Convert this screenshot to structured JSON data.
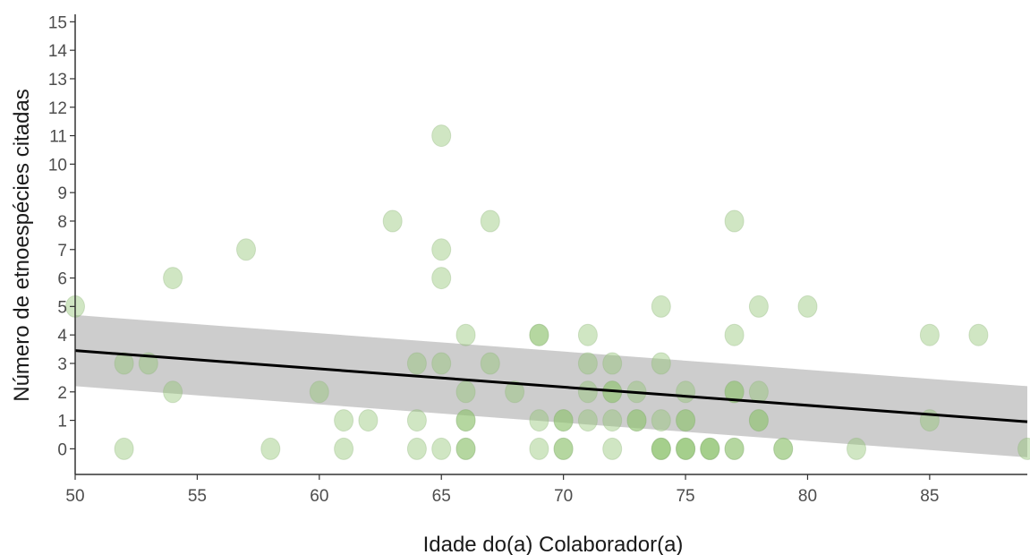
{
  "chart_data": {
    "type": "scatter",
    "title": "",
    "xlabel": "Idade do(a) Colaborador(a)",
    "ylabel": "Número de etnoespécies citadas",
    "xlim": [
      50,
      89
    ],
    "ylim": [
      -0.9,
      15.2
    ],
    "x_ticks": [
      50,
      55,
      60,
      65,
      70,
      75,
      80,
      85
    ],
    "y_ticks": [
      0,
      1,
      2,
      3,
      4,
      5,
      6,
      7,
      8,
      9,
      10,
      11,
      12,
      13,
      14,
      15
    ],
    "grid": false,
    "legend": "none",
    "colors": {
      "point_fill": "#8fc46f",
      "point_stroke": "#8fb47b",
      "fit_line": "#000000",
      "confidence_band": "#c8c8c8",
      "axis": "#333333",
      "tick_text": "#4d4d4d"
    },
    "series": [
      {
        "kind": "points",
        "x": [
          50,
          52,
          52,
          53,
          54,
          54,
          57,
          58,
          60,
          61,
          61,
          62,
          63,
          64,
          64,
          64,
          65,
          65,
          65,
          65,
          65,
          66,
          66,
          66,
          66,
          66,
          66,
          67,
          67,
          68,
          69,
          69,
          69,
          69,
          70,
          70,
          70,
          70,
          71,
          71,
          71,
          71,
          72,
          72,
          72,
          72,
          72,
          73,
          73,
          73,
          74,
          74,
          74,
          74,
          74,
          74,
          75,
          75,
          75,
          75,
          75,
          75,
          76,
          76,
          76,
          77,
          77,
          77,
          77,
          77,
          77,
          78,
          78,
          78,
          78,
          79,
          79,
          80,
          82,
          85,
          85,
          87,
          89
        ],
        "y": [
          5,
          3,
          0,
          3,
          6,
          2,
          7,
          0,
          2,
          1,
          0,
          1,
          8,
          3,
          1,
          0,
          11,
          7,
          6,
          3,
          0,
          4,
          2,
          1,
          1,
          0,
          0,
          8,
          3,
          2,
          4,
          4,
          1,
          0,
          1,
          1,
          0,
          0,
          4,
          3,
          2,
          1,
          3,
          2,
          2,
          1,
          0,
          2,
          1,
          1,
          5,
          3,
          1,
          0,
          0,
          0,
          2,
          1,
          1,
          0,
          0,
          0,
          0,
          0,
          0,
          8,
          4,
          2,
          2,
          0,
          0,
          5,
          2,
          1,
          1,
          0,
          0,
          5,
          0,
          4,
          1,
          4,
          0
        ]
      },
      {
        "kind": "fit",
        "x": [
          50,
          89
        ],
        "y": [
          3.45,
          0.95
        ],
        "ci_lower": [
          2.2,
          -0.3
        ],
        "ci_upper": [
          4.7,
          2.2
        ]
      }
    ]
  }
}
